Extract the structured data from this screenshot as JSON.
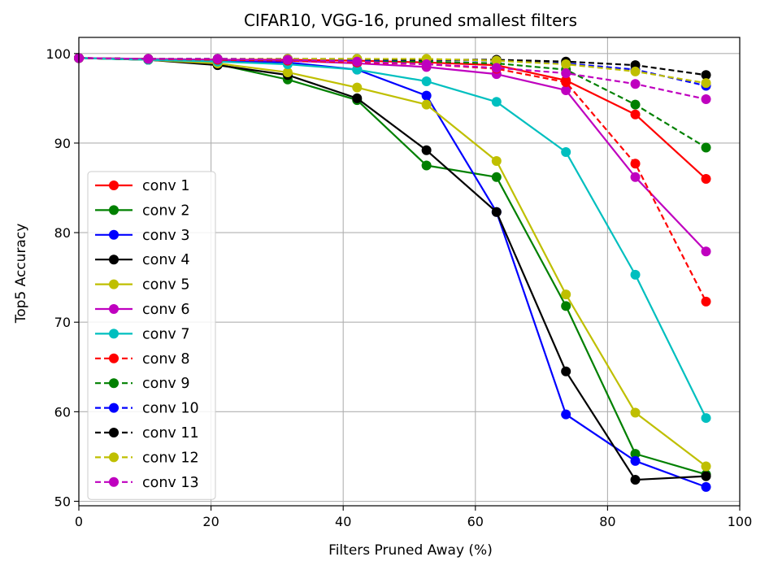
{
  "chart_data": {
    "type": "line",
    "title": "CIFAR10, VGG-16, pruned smallest filters",
    "xlabel": "Filters Pruned Away (%)",
    "ylabel": "Top5 Accuracy",
    "xlim": [
      0,
      100
    ],
    "ylim": [
      49.5,
      101.8
    ],
    "xticks": [
      0,
      20,
      40,
      60,
      80,
      100
    ],
    "yticks": [
      50,
      60,
      70,
      80,
      90,
      100
    ],
    "grid": true,
    "legend_position": "lower-left",
    "x": [
      0,
      10.5,
      21,
      31.6,
      42.1,
      52.6,
      63.2,
      73.7,
      84.2,
      94.9
    ],
    "series": [
      {
        "name": "conv 1",
        "color": "#ff0000",
        "dash": "solid",
        "values": [
          99.5,
          99.4,
          99.3,
          99.3,
          99.2,
          99.0,
          98.7,
          97.0,
          93.2,
          86.0
        ]
      },
      {
        "name": "conv 2",
        "color": "#008000",
        "dash": "solid",
        "values": [
          99.5,
          99.3,
          98.8,
          97.1,
          94.8,
          87.5,
          86.2,
          71.8,
          55.3,
          53.0
        ]
      },
      {
        "name": "conv 3",
        "color": "#0000ff",
        "dash": "solid",
        "values": [
          99.5,
          99.3,
          99.2,
          99.0,
          98.2,
          95.3,
          82.3,
          59.7,
          54.5,
          51.6
        ]
      },
      {
        "name": "conv 4",
        "color": "#000000",
        "dash": "solid",
        "values": [
          99.5,
          99.3,
          98.7,
          97.6,
          95.0,
          89.2,
          82.3,
          64.5,
          52.4,
          52.8
        ]
      },
      {
        "name": "conv 5",
        "color": "#bfbf00",
        "dash": "solid",
        "values": [
          99.5,
          99.3,
          98.9,
          97.9,
          96.2,
          94.3,
          88.0,
          73.1,
          59.9,
          53.9
        ]
      },
      {
        "name": "conv 6",
        "color": "#bf00bf",
        "dash": "solid",
        "values": [
          99.5,
          99.4,
          99.3,
          99.2,
          98.9,
          98.5,
          97.7,
          95.9,
          86.2,
          77.9
        ]
      },
      {
        "name": "conv 7",
        "color": "#00bfbf",
        "dash": "solid",
        "values": [
          99.5,
          99.3,
          99.1,
          98.8,
          98.2,
          96.9,
          94.6,
          89.0,
          75.3,
          59.3
        ]
      },
      {
        "name": "conv 8",
        "color": "#ff0000",
        "dash": "dashed",
        "values": [
          99.5,
          99.4,
          99.3,
          99.2,
          99.0,
          98.8,
          98.3,
          96.8,
          87.7,
          72.3
        ]
      },
      {
        "name": "conv 9",
        "color": "#008000",
        "dash": "dashed",
        "values": [
          99.5,
          99.4,
          99.4,
          99.3,
          99.2,
          99.1,
          98.9,
          98.2,
          94.3,
          89.5
        ]
      },
      {
        "name": "conv 10",
        "color": "#0000ff",
        "dash": "dashed",
        "values": [
          99.5,
          99.4,
          99.4,
          99.4,
          99.3,
          99.3,
          99.2,
          98.9,
          98.2,
          96.4
        ]
      },
      {
        "name": "conv 11",
        "color": "#000000",
        "dash": "dashed",
        "values": [
          99.5,
          99.4,
          99.4,
          99.4,
          99.4,
          99.3,
          99.3,
          99.1,
          98.7,
          97.6
        ]
      },
      {
        "name": "conv 12",
        "color": "#bfbf00",
        "dash": "dashed",
        "values": [
          99.5,
          99.4,
          99.4,
          99.4,
          99.4,
          99.4,
          99.2,
          98.8,
          98.0,
          96.7
        ]
      },
      {
        "name": "conv 13",
        "color": "#bf00bf",
        "dash": "dashed",
        "values": [
          99.5,
          99.4,
          99.4,
          99.3,
          99.1,
          98.8,
          98.4,
          97.8,
          96.6,
          94.9
        ]
      }
    ]
  }
}
